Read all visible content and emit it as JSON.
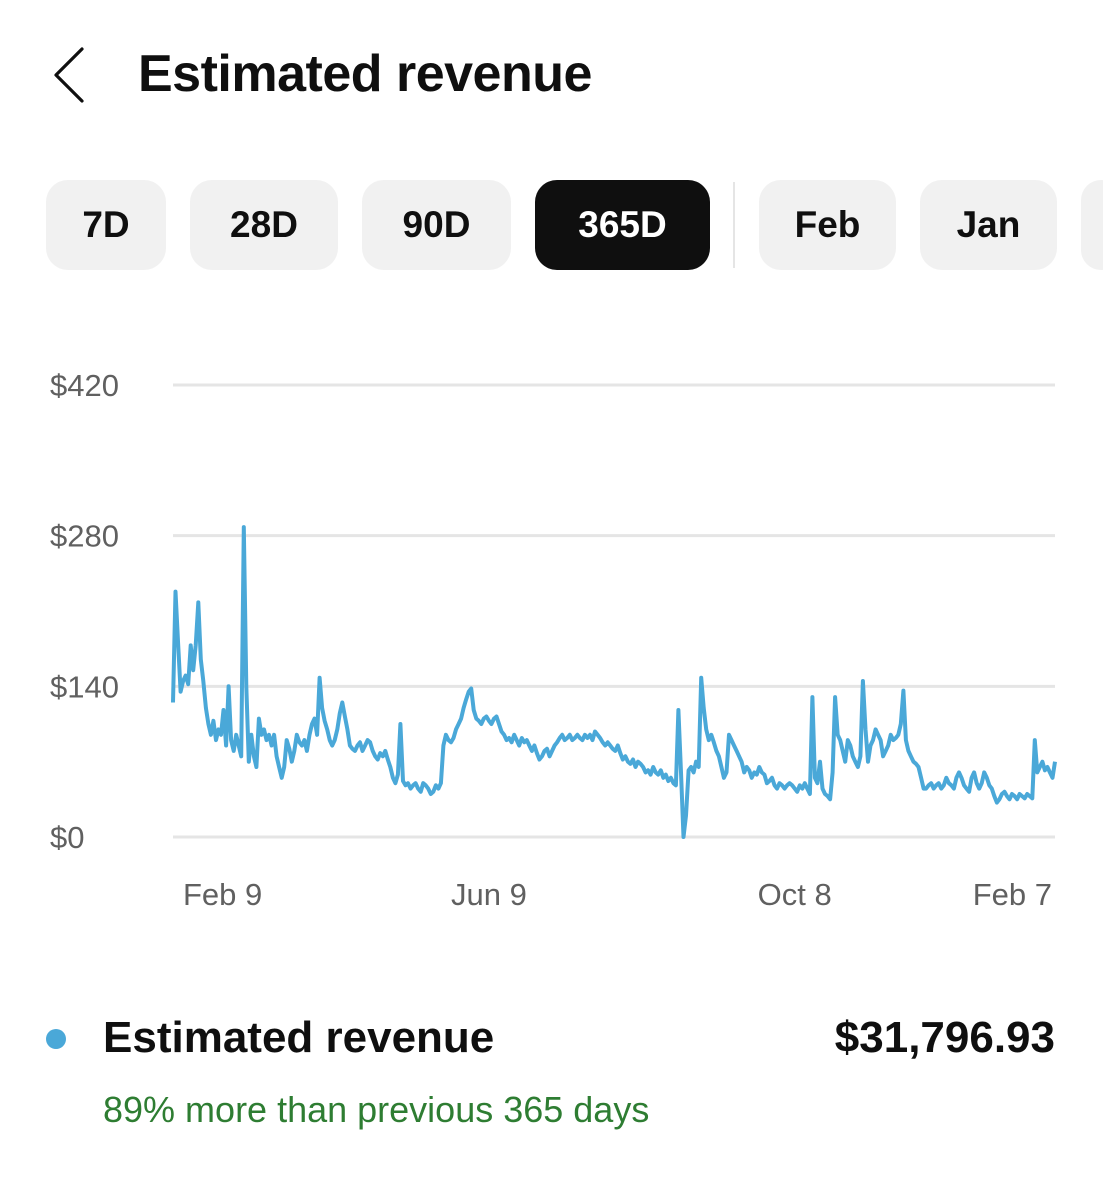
{
  "header": {
    "title": "Estimated revenue",
    "back_icon": "chevron-left-icon"
  },
  "chips": [
    {
      "label": "7D",
      "selected": false
    },
    {
      "label": "28D",
      "selected": false
    },
    {
      "label": "90D",
      "selected": false
    },
    {
      "label": "365D",
      "selected": true
    },
    {
      "label": "Feb",
      "selected": false
    },
    {
      "label": "Jan",
      "selected": false
    }
  ],
  "colors": {
    "series": "#4aa8d8",
    "positive": "#2e7d32",
    "grid": "#e5e5e5",
    "axis_text": "#606060",
    "selected_chip": "#0f0f0f",
    "chip": "#f1f1f1"
  },
  "chart_data": {
    "type": "line",
    "series_name": "Estimated revenue",
    "y_ticks": [
      {
        "value": 0,
        "label": "$0"
      },
      {
        "value": 140,
        "label": "$140"
      },
      {
        "value": 280,
        "label": "$280"
      },
      {
        "value": 420,
        "label": "$420"
      }
    ],
    "ylim": [
      0,
      420
    ],
    "x_ticks": [
      {
        "index": 5,
        "label": "Feb 9"
      },
      {
        "index": 125,
        "label": "Jun 9"
      },
      {
        "index": 246,
        "label": "Oct 8"
      },
      {
        "index": 364,
        "label": "Feb 7"
      }
    ],
    "grid": true,
    "points": [
      [
        0,
        125
      ],
      [
        1,
        228
      ],
      [
        2,
        180
      ],
      [
        3,
        135
      ],
      [
        4,
        145
      ],
      [
        5,
        150
      ],
      [
        6,
        142
      ],
      [
        7,
        178
      ],
      [
        8,
        155
      ],
      [
        9,
        178
      ],
      [
        10,
        218
      ],
      [
        11,
        165
      ],
      [
        12,
        145
      ],
      [
        13,
        120
      ],
      [
        14,
        105
      ],
      [
        15,
        95
      ],
      [
        16,
        108
      ],
      [
        17,
        90
      ],
      [
        18,
        100
      ],
      [
        19,
        95
      ],
      [
        20,
        118
      ],
      [
        21,
        85
      ],
      [
        22,
        140
      ],
      [
        23,
        90
      ],
      [
        24,
        80
      ],
      [
        25,
        95
      ],
      [
        26,
        85
      ],
      [
        27,
        75
      ],
      [
        28,
        288
      ],
      [
        29,
        140
      ],
      [
        30,
        70
      ],
      [
        31,
        95
      ],
      [
        32,
        75
      ],
      [
        33,
        65
      ],
      [
        34,
        110
      ],
      [
        35,
        95
      ],
      [
        36,
        100
      ],
      [
        37,
        90
      ],
      [
        38,
        95
      ],
      [
        39,
        85
      ],
      [
        40,
        95
      ],
      [
        41,
        75
      ],
      [
        42,
        65
      ],
      [
        43,
        55
      ],
      [
        44,
        65
      ],
      [
        45,
        90
      ],
      [
        46,
        82
      ],
      [
        47,
        70
      ],
      [
        48,
        80
      ],
      [
        49,
        95
      ],
      [
        50,
        88
      ],
      [
        51,
        85
      ],
      [
        52,
        90
      ],
      [
        53,
        80
      ],
      [
        54,
        95
      ],
      [
        55,
        105
      ],
      [
        56,
        110
      ],
      [
        57,
        95
      ],
      [
        58,
        148
      ],
      [
        59,
        120
      ],
      [
        60,
        108
      ],
      [
        61,
        100
      ],
      [
        62,
        90
      ],
      [
        63,
        85
      ],
      [
        64,
        90
      ],
      [
        65,
        100
      ],
      [
        66,
        115
      ],
      [
        67,
        125
      ],
      [
        68,
        112
      ],
      [
        69,
        100
      ],
      [
        70,
        85
      ],
      [
        71,
        82
      ],
      [
        72,
        80
      ],
      [
        73,
        85
      ],
      [
        74,
        88
      ],
      [
        75,
        80
      ],
      [
        76,
        85
      ],
      [
        77,
        90
      ],
      [
        78,
        88
      ],
      [
        79,
        80
      ],
      [
        80,
        75
      ],
      [
        81,
        72
      ],
      [
        82,
        78
      ],
      [
        83,
        75
      ],
      [
        84,
        80
      ],
      [
        85,
        72
      ],
      [
        86,
        65
      ],
      [
        87,
        55
      ],
      [
        88,
        50
      ],
      [
        89,
        58
      ],
      [
        90,
        105
      ],
      [
        91,
        52
      ],
      [
        92,
        48
      ],
      [
        93,
        50
      ],
      [
        94,
        45
      ],
      [
        95,
        48
      ],
      [
        96,
        50
      ],
      [
        97,
        45
      ],
      [
        98,
        42
      ],
      [
        99,
        50
      ],
      [
        100,
        48
      ],
      [
        101,
        45
      ],
      [
        102,
        40
      ],
      [
        103,
        42
      ],
      [
        104,
        48
      ],
      [
        105,
        45
      ],
      [
        106,
        50
      ],
      [
        107,
        85
      ],
      [
        108,
        95
      ],
      [
        109,
        90
      ],
      [
        110,
        88
      ],
      [
        111,
        92
      ],
      [
        112,
        100
      ],
      [
        113,
        105
      ],
      [
        114,
        110
      ],
      [
        115,
        120
      ],
      [
        116,
        128
      ],
      [
        117,
        135
      ],
      [
        118,
        138
      ],
      [
        119,
        118
      ],
      [
        120,
        110
      ],
      [
        121,
        108
      ],
      [
        122,
        105
      ],
      [
        123,
        110
      ],
      [
        124,
        112
      ],
      [
        125,
        108
      ],
      [
        126,
        105
      ],
      [
        127,
        110
      ],
      [
        128,
        112
      ],
      [
        129,
        105
      ],
      [
        130,
        98
      ],
      [
        131,
        95
      ],
      [
        132,
        90
      ],
      [
        133,
        92
      ],
      [
        134,
        88
      ],
      [
        135,
        95
      ],
      [
        136,
        90
      ],
      [
        137,
        85
      ],
      [
        138,
        92
      ],
      [
        139,
        88
      ],
      [
        140,
        90
      ],
      [
        141,
        85
      ],
      [
        142,
        80
      ],
      [
        143,
        85
      ],
      [
        144,
        78
      ],
      [
        145,
        72
      ],
      [
        146,
        75
      ],
      [
        147,
        80
      ],
      [
        148,
        82
      ],
      [
        149,
        75
      ],
      [
        150,
        80
      ],
      [
        151,
        85
      ],
      [
        152,
        88
      ],
      [
        153,
        92
      ],
      [
        154,
        95
      ],
      [
        155,
        90
      ],
      [
        156,
        92
      ],
      [
        157,
        95
      ],
      [
        158,
        90
      ],
      [
        159,
        92
      ],
      [
        160,
        95
      ],
      [
        161,
        92
      ],
      [
        162,
        90
      ],
      [
        163,
        95
      ],
      [
        164,
        92
      ],
      [
        165,
        95
      ],
      [
        166,
        90
      ],
      [
        167,
        98
      ],
      [
        168,
        95
      ],
      [
        169,
        92
      ],
      [
        170,
        88
      ],
      [
        171,
        85
      ],
      [
        172,
        88
      ],
      [
        173,
        85
      ],
      [
        174,
        82
      ],
      [
        175,
        80
      ],
      [
        176,
        85
      ],
      [
        177,
        78
      ],
      [
        178,
        72
      ],
      [
        179,
        75
      ],
      [
        180,
        70
      ],
      [
        181,
        68
      ],
      [
        182,
        72
      ],
      [
        183,
        65
      ],
      [
        184,
        70
      ],
      [
        185,
        68
      ],
      [
        186,
        65
      ],
      [
        187,
        60
      ],
      [
        188,
        62
      ],
      [
        189,
        58
      ],
      [
        190,
        65
      ],
      [
        191,
        60
      ],
      [
        192,
        58
      ],
      [
        193,
        62
      ],
      [
        194,
        55
      ],
      [
        195,
        58
      ],
      [
        196,
        52
      ],
      [
        197,
        55
      ],
      [
        198,
        50
      ],
      [
        199,
        48
      ],
      [
        200,
        118
      ],
      [
        201,
        60
      ],
      [
        202,
        0
      ],
      [
        203,
        20
      ],
      [
        204,
        62
      ],
      [
        205,
        65
      ],
      [
        206,
        60
      ],
      [
        207,
        70
      ],
      [
        208,
        65
      ],
      [
        209,
        148
      ],
      [
        210,
        120
      ],
      [
        211,
        100
      ],
      [
        212,
        90
      ],
      [
        213,
        95
      ],
      [
        214,
        88
      ],
      [
        215,
        80
      ],
      [
        216,
        75
      ],
      [
        217,
        65
      ],
      [
        218,
        55
      ],
      [
        219,
        60
      ],
      [
        220,
        95
      ],
      [
        221,
        90
      ],
      [
        222,
        85
      ],
      [
        223,
        80
      ],
      [
        224,
        75
      ],
      [
        225,
        70
      ],
      [
        226,
        60
      ],
      [
        227,
        65
      ],
      [
        228,
        62
      ],
      [
        229,
        55
      ],
      [
        230,
        60
      ],
      [
        231,
        58
      ],
      [
        232,
        65
      ],
      [
        233,
        60
      ],
      [
        234,
        58
      ],
      [
        235,
        50
      ],
      [
        236,
        52
      ],
      [
        237,
        55
      ],
      [
        238,
        48
      ],
      [
        239,
        45
      ],
      [
        240,
        50
      ],
      [
        241,
        48
      ],
      [
        242,
        45
      ],
      [
        243,
        48
      ],
      [
        244,
        50
      ],
      [
        245,
        48
      ],
      [
        246,
        45
      ],
      [
        247,
        42
      ],
      [
        248,
        48
      ],
      [
        249,
        45
      ],
      [
        250,
        50
      ],
      [
        251,
        45
      ],
      [
        252,
        40
      ],
      [
        253,
        130
      ],
      [
        254,
        55
      ],
      [
        255,
        50
      ],
      [
        256,
        70
      ],
      [
        257,
        45
      ],
      [
        258,
        40
      ],
      [
        259,
        38
      ],
      [
        260,
        35
      ],
      [
        261,
        60
      ],
      [
        262,
        130
      ],
      [
        263,
        95
      ],
      [
        264,
        90
      ],
      [
        265,
        80
      ],
      [
        266,
        70
      ],
      [
        267,
        90
      ],
      [
        268,
        85
      ],
      [
        269,
        75
      ],
      [
        270,
        70
      ],
      [
        271,
        65
      ],
      [
        272,
        75
      ],
      [
        273,
        145
      ],
      [
        274,
        100
      ],
      [
        275,
        70
      ],
      [
        276,
        85
      ],
      [
        277,
        90
      ],
      [
        278,
        100
      ],
      [
        279,
        95
      ],
      [
        280,
        90
      ],
      [
        281,
        75
      ],
      [
        282,
        80
      ],
      [
        283,
        85
      ],
      [
        284,
        95
      ],
      [
        285,
        90
      ],
      [
        286,
        92
      ],
      [
        287,
        95
      ],
      [
        288,
        105
      ],
      [
        289,
        136
      ],
      [
        290,
        90
      ],
      [
        291,
        80
      ],
      [
        292,
        75
      ],
      [
        293,
        70
      ],
      [
        294,
        68
      ],
      [
        295,
        65
      ],
      [
        296,
        55
      ],
      [
        297,
        45
      ],
      [
        298,
        45
      ],
      [
        299,
        48
      ],
      [
        300,
        50
      ],
      [
        301,
        45
      ],
      [
        302,
        48
      ],
      [
        303,
        50
      ],
      [
        304,
        45
      ],
      [
        305,
        48
      ],
      [
        306,
        55
      ],
      [
        307,
        50
      ],
      [
        308,
        48
      ],
      [
        309,
        45
      ],
      [
        310,
        55
      ],
      [
        311,
        60
      ],
      [
        312,
        55
      ],
      [
        313,
        48
      ],
      [
        314,
        45
      ],
      [
        315,
        42
      ],
      [
        316,
        55
      ],
      [
        317,
        60
      ],
      [
        318,
        50
      ],
      [
        319,
        45
      ],
      [
        320,
        50
      ],
      [
        321,
        60
      ],
      [
        322,
        55
      ],
      [
        323,
        48
      ],
      [
        324,
        45
      ],
      [
        325,
        38
      ],
      [
        326,
        32
      ],
      [
        327,
        35
      ],
      [
        328,
        40
      ],
      [
        329,
        42
      ],
      [
        330,
        38
      ],
      [
        331,
        35
      ],
      [
        332,
        40
      ],
      [
        333,
        38
      ],
      [
        334,
        35
      ],
      [
        335,
        40
      ],
      [
        336,
        38
      ],
      [
        337,
        36
      ],
      [
        338,
        40
      ],
      [
        339,
        38
      ],
      [
        340,
        36
      ],
      [
        341,
        90
      ],
      [
        342,
        60
      ],
      [
        343,
        65
      ],
      [
        344,
        70
      ],
      [
        345,
        62
      ],
      [
        346,
        65
      ],
      [
        347,
        60
      ],
      [
        348,
        55
      ],
      [
        349,
        70
      ]
    ]
  },
  "legend": {
    "label": "Estimated revenue",
    "value": "$31,796.93",
    "comparison": "89% more than previous 365 days"
  }
}
